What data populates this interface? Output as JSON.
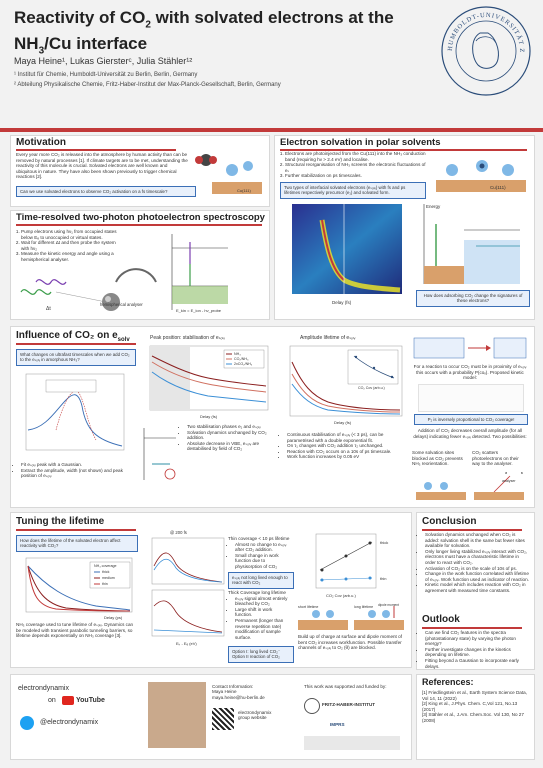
{
  "header": {
    "title_line1": "Reactivity of CO",
    "title_sub": "2",
    "title_line1_end": " with solvated electrons at the",
    "title_line2": "NH",
    "title_line2_sub": "3",
    "title_line2_end": "/Cu interface",
    "authors": "Maya Heine¹, Lukas Giersterᶜ, Julia Stähler¹²",
    "affiliation1": "¹ Institut für Chemie, Humboldt-Universität zu Berlin, Berlin, Germany",
    "affiliation2": "² Abteilung Physikalische Chemie, Fritz-Haber-Institut der Max-Planck-Gesellschaft, Berlin, Germany",
    "seal_text": "HUMBOLDT-UNIVERSITÄT ZU BERLIN"
  },
  "motivation": {
    "title": "Motivation",
    "text": "Every year more CO₂ is released into the atmosphere by human activity than can be removed by natural processes [1]. If climate targets are to be met, understanding the reactivity of this molecule is crucial. Solvated electrons are well known and ubiquitous in nature. They have also been shown previously to trigger chemical reactions [2].",
    "question": "Can we use solvated electrons to observe CO₂ activation on a fs timescale?"
  },
  "tr2ppe": {
    "title": "Time-resolved two-photon photoelectron spectroscopy",
    "steps": [
      "Pump electrons using hν₁ from occupied states below Eₑ to unoccupied or virtual states.",
      "Wait for different Δt and then probe the system with hν₂",
      "Measure the kinetic energy and angle using a hemispherical analyser."
    ],
    "analyser_label": "hemispherical analyser",
    "dt_label": "Δt"
  },
  "solvation": {
    "title": "Electron solvation in polar solvents",
    "steps": [
      "Electrons are photoinjected from the Cu(111) into the NH₃ conduction band (requiring hν > 2.4 eV) and localise.",
      "Structural reorganisation of NH₃ screens the electronic fluctuations of eₛ",
      "Further stabilization on ps timescales."
    ],
    "highlight": "Two types of interfacial solvated electrons (eₛₒₗᵥ) with fs and ps lifetimes respectively precursor (e₁) and solvated form.",
    "question": "How does adsorbing CO₂ change the signatures of these electrons?",
    "xlabel": "Delay (fs)",
    "ylabel": "E - E_F (eV)",
    "energy_label": "Energy",
    "cu_label": "Cu(111)"
  },
  "influence": {
    "title": "Influence of CO₂ on e",
    "title_sub": "solv",
    "question": "What changes on ultrafast timescales when we add CO₂ to the eₛₒₗᵥ in amorphous NH₃?",
    "bullets": [
      "Fit eₛₒₗᵥ peak with a Gaussian.",
      "Extract the amplitude, width (not shown) and peak position of eₛₒₗᵥ"
    ],
    "peak_title": "Peak position: stabilisation of eₛₒₗᵥ",
    "peak_bullets": [
      "Two stabilisation phases e₁ and eₛₒₗᵥ",
      "Solvation dynamics unchanged by CO₂ addition.",
      "Absolute decrease in VBE, eₛₒₗᵥ are destabilised by field of CO₂"
    ],
    "amp_title": "Amplitude lifetime of eₛₒₗᵥ",
    "amp_bullets": [
      "Continuous stabilisation of eₛₒₗᵥ (< 3 ps), can be parametrised with a double exponential fit.",
      "On τ₁ changes with CO₂ addition τ₂ unchanged.",
      "Reaction with CO₂ occurs on a 10s of ps timescale.",
      "Work function increases by 0.05 eV"
    ],
    "legend": [
      "NH₃",
      "CO₂/NH₃",
      "2xCO₂/NH₃"
    ],
    "delay_label": "Delay (fs)",
    "amp_ylabel": "Amplitude",
    "co2_xlabel": "CO₂ Cov (arb.u.)",
    "reaction_title": "For a reaction to occur CO₂ must be in proximity of eₛₒₗᵥ this occurs with a probability P(coᵥ). Proposed kinetic model:",
    "proportional": "P₂ is inversely proportional to CO₂ coverage!",
    "addition_text": "Addition of CO₂ decreases overall amplitude (for all delays) indicating fewer eₛₒₗᵥ detected. Two possibilities:",
    "option1": "Some solvation sites blocked as CO₂ prevents NH₃ reorientation.",
    "option2": "CO₂ scatters photoelectrons on their way to the analyser.",
    "analyser": "analyser"
  },
  "tuning": {
    "title": "Tuning the lifetime",
    "question": "How does the lifetime of the solvated electron affect reactivity with CO₂?",
    "legend": [
      "NH₃ coverage",
      "thick",
      "medium",
      "thin"
    ],
    "xlabel": "Delay (ps)",
    "ylabel": "2PPE intensity",
    "text": "NH₃ coverage used to tune lifetime of eₛₒₗᵥ. Dynamics can be modeled with transient parabolic tunneling barriers, so lifetime depends exponentially on NH₃ coverage [3].",
    "delay_label": "@ 200 fs",
    "thin_note": "Thin coverage < 10 ps lifetime",
    "thin_bullets": [
      "Almost no change to eₛₒₗᵥ after CO₂ addition.",
      "Small change in work function due to physisorption of CO₂"
    ],
    "thin_highlight": "eₛₒₗᵥ not long lived enough to react with CO₂",
    "thick_note": "Thick Coverage long lifetime",
    "thick_bullets": [
      "eₛₒₗᵥ signal almost entirely bleached by CO₂",
      "Large shift in work function.",
      "Permanent (longer than reverse repetition rate) modification of sample surface."
    ],
    "options": "Option I: long lived CO₂⁻ Option II reaction of CO₂",
    "ekin_label": "Eₖ - Eₑ (eV)",
    "wf_ylabel": "work function (eV)",
    "wf_legend": [
      "thick",
      "thin"
    ],
    "co2_cov": "CO₂ Cov (arb.u.)",
    "short_lifetime": "short lifetime",
    "long_lifetime": "long lifetime",
    "dipole_moment": "dipole moment",
    "buildup": "Build up of charge at surface and dipole moment of bent CO₂ increases workfunction. Possible transfer channels of eₛₒₗᵥ to O₂ (θ) are blocked."
  },
  "conclusion": {
    "title": "Conclusion",
    "bullets": [
      "Solvation dynamics unchanged when CO₂ is added: solvation shell is the same but fewer sites available for solvation.",
      "Only longer living stabilized eₛₒₗᵥ interact with CO₂, electrons must have a characteristic lifetime in order to react with CO₂.",
      "Activation of CO₂ is on the scale of 10s of ps.",
      "Change in the work function correlated with lifetime of eₛₒₗᵥ. Work function used as indicator of reaction.",
      "Kinetic model which includes reaction with CO₂ in agreement with measured time constants."
    ]
  },
  "outlook": {
    "title": "Outlook",
    "bullets": [
      "Can we find CO₂ features in the spectra (photostationary state) by varying the photon energy?",
      "Further investigate changes in the kinetics depending on lifetime.",
      "Fitting beyond a Gaussian to incorporate early delays."
    ]
  },
  "footer": {
    "group": "electrondynamix",
    "on": "on",
    "youtube": "YouTube",
    "twitter": "@electrondynamix",
    "contact_title": "Contact Information:",
    "contact_name": "Maya Heine",
    "contact_email": "maya.heine@hu-berlin.de",
    "website_label": "electrondynamix group website",
    "support": "This work was supported and funded by:",
    "fhi": "FRITZ-HABER-INSTITUT",
    "imprs": "IMPRS"
  },
  "references": {
    "title": "References:",
    "items": [
      "[1] Friedlingstein et al., Earth System Science Data, Vol 14, 11 (2022)",
      "[2] King et al., J.Phys. Chem. C,Vol 121, No.13 (2017)",
      "[3] Stähler et al., J.Am. Chem.Soc. Vol 130, No 27 (2008)"
    ]
  },
  "colors": {
    "accent": "#c23a3a",
    "blue": "#3b6fb6",
    "teal": "#2f8fa6"
  }
}
